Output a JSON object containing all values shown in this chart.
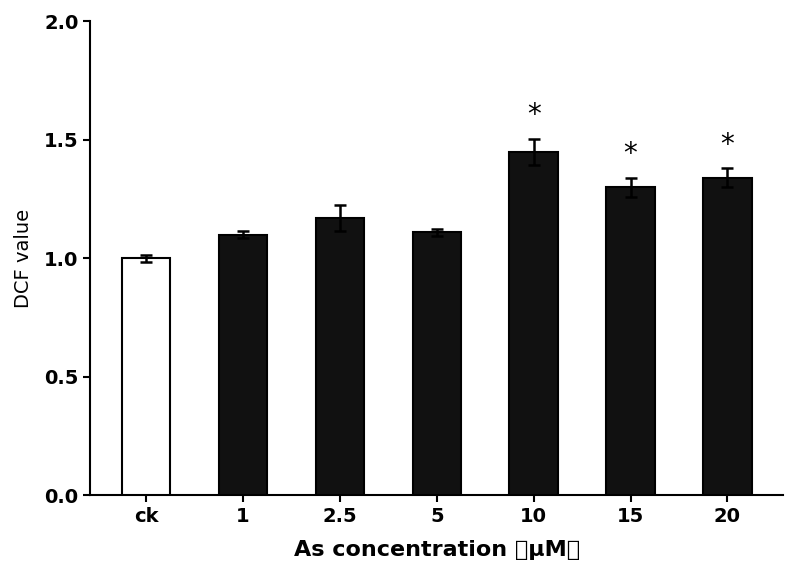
{
  "categories": [
    "ck",
    "1",
    "2.5",
    "5",
    "10",
    "15",
    "20"
  ],
  "values": [
    1.0,
    1.1,
    1.17,
    1.11,
    1.45,
    1.3,
    1.34
  ],
  "errors": [
    0.015,
    0.015,
    0.055,
    0.015,
    0.055,
    0.04,
    0.04
  ],
  "bar_colors": [
    "#ffffff",
    "#111111",
    "#111111",
    "#111111",
    "#111111",
    "#111111",
    "#111111"
  ],
  "bar_edge_colors": [
    "#000000",
    "#000000",
    "#000000",
    "#000000",
    "#000000",
    "#000000",
    "#000000"
  ],
  "significance": [
    false,
    false,
    false,
    false,
    true,
    true,
    true
  ],
  "xlabel": "As concentration （μM）",
  "ylabel": "DCF value",
  "ylim": [
    0.0,
    2.0
  ],
  "yticks": [
    0.0,
    0.5,
    1.0,
    1.5,
    2.0
  ],
  "title": "",
  "bar_width": 0.5,
  "figsize": [
    7.97,
    5.74
  ],
  "dpi": 100,
  "xlabel_fontsize": 16,
  "ylabel_fontsize": 14,
  "tick_fontsize": 14,
  "sig_fontsize": 20,
  "sig_symbol": "*"
}
